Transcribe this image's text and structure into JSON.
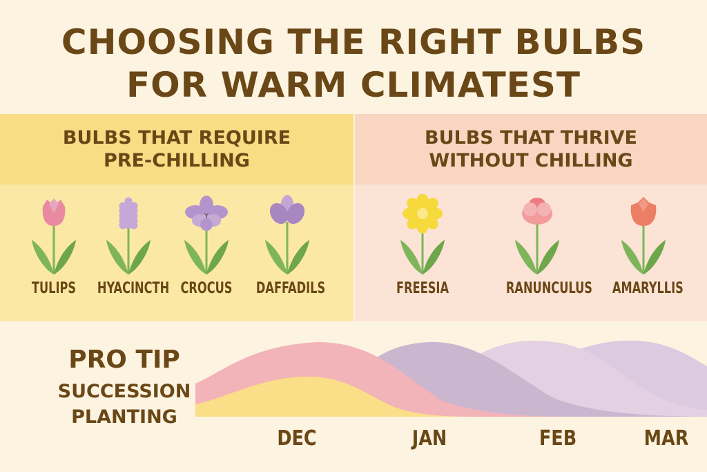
{
  "title": {
    "line1": "CHOOSING THE RIGHT BULBS",
    "line2": "FOR WARM CLIMATEST"
  },
  "left_panel": {
    "heading_line1": "BULBS THAT REQUIRE",
    "heading_line2": "PRE-CHILLING",
    "flowers": [
      {
        "label": "TULIPS",
        "icon": "tulip-icon",
        "color": "#e98aa0"
      },
      {
        "label": "HYACINCTH",
        "icon": "hyacinth-icon",
        "color": "#c5a8d8"
      },
      {
        "label": "CROCUS",
        "icon": "crocus-icon",
        "color": "#b394cc"
      },
      {
        "label": "DAFFADILS",
        "icon": "daffodil-icon",
        "color": "#a887c0"
      }
    ]
  },
  "right_panel": {
    "heading_line1": "BULBS THAT THRIVE",
    "heading_line2": "WITHOUT CHILLING",
    "flowers": [
      {
        "label": "FREESIA",
        "icon": "freesia-icon",
        "color": "#f6d93a"
      },
      {
        "label": "RANUNCULUS",
        "icon": "ranunculus-icon",
        "color": "#f29a9c"
      },
      {
        "label": "AMARYLLIS",
        "icon": "amaryllis-icon",
        "color": "#ec7e66"
      }
    ]
  },
  "pro_tip": {
    "label": "PRO TIP",
    "line1": "SUCCESSION",
    "line2": "PLANTING"
  },
  "timeline": {
    "months": [
      "DEC",
      "JAN",
      "FEB",
      "MAR"
    ],
    "wave_colors": [
      "#fbde88",
      "#f2b3b9",
      "#cbb6d0",
      "#e3d0e3",
      "#dccbe0"
    ]
  },
  "colors": {
    "text": "#6a4716",
    "background": "#fdf3e1",
    "leaf": "#7fb55a"
  }
}
